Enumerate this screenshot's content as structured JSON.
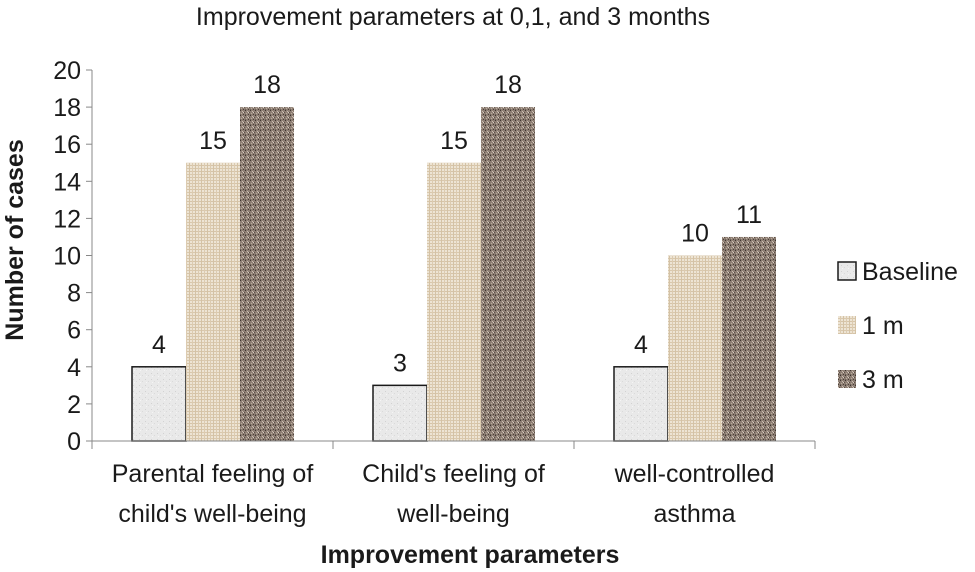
{
  "chart_data": {
    "type": "bar",
    "title": "Improvement parameters at 0,1, and 3 months",
    "xlabel": "Improvement parameters",
    "ylabel": "Number of cases",
    "ylim": [
      0,
      20
    ],
    "yticks": [
      0,
      2,
      4,
      6,
      8,
      10,
      12,
      14,
      16,
      18,
      20
    ],
    "categories": [
      [
        "Parental feeling of",
        "child's well-being"
      ],
      [
        "Child's feeling of",
        "well-being"
      ],
      [
        "well-controlled",
        "asthma"
      ]
    ],
    "series": [
      {
        "name": "Baseline",
        "values": [
          4,
          3,
          4
        ],
        "pattern": "baseline",
        "color": "#e6e6e6"
      },
      {
        "name": "1 m",
        "values": [
          15,
          15,
          10
        ],
        "pattern": "onem",
        "color": "#e2d6c2"
      },
      {
        "name": "3 m",
        "values": [
          18,
          18,
          11
        ],
        "pattern": "threem",
        "color": "#8a7a6e"
      }
    ],
    "data_labels": true,
    "legend": "right"
  }
}
